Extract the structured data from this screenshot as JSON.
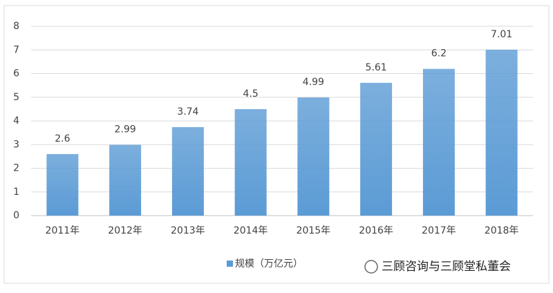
{
  "chart_data": {
    "type": "bar",
    "categories": [
      "2011年",
      "2012年",
      "2013年",
      "2014年",
      "2015年",
      "2016年",
      "2017年",
      "2018年"
    ],
    "series": [
      {
        "name": "规模（万亿元）",
        "color": "#5b9bd5",
        "values": [
          2.6,
          2.99,
          3.74,
          4.5,
          4.99,
          5.61,
          6.2,
          7.01
        ]
      }
    ],
    "ylim": [
      0,
      8
    ],
    "yticks": [
      0,
      1,
      2,
      3,
      4,
      5,
      6,
      7,
      8
    ],
    "grid": true,
    "legend": "bottom"
  },
  "watermark": {
    "text": "三顾咨询与三顾堂私董会"
  }
}
